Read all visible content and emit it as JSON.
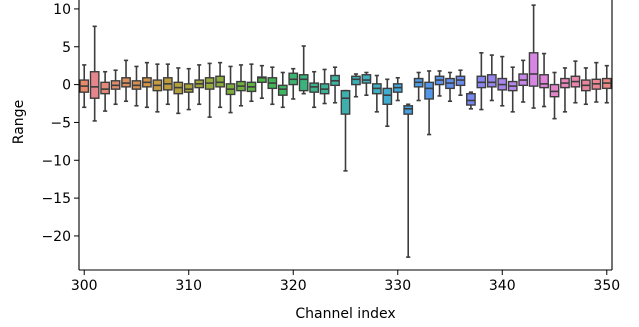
{
  "chart_data": {
    "type": "box",
    "title": "",
    "xlabel": "Channel index",
    "ylabel": "Range",
    "xlim": [
      299.5,
      350.5
    ],
    "ylim": [
      -24.5,
      12.5
    ],
    "xticks": [
      300,
      310,
      320,
      330,
      340,
      350
    ],
    "yticks": [
      10,
      5,
      0,
      -5,
      -10,
      -15,
      -20
    ],
    "ytick_labels": [
      "10",
      "5",
      "0",
      "−5",
      "−10",
      "−15",
      "−20"
    ],
    "grid": false,
    "legend": "none",
    "boxes": [
      {
        "x": 300,
        "color": "#e8896a",
        "whislo": -3.0,
        "q1": -1.0,
        "med": -0.2,
        "q3": 0.6,
        "whishi": 2.6
      },
      {
        "x": 301,
        "color": "#e4868c",
        "whislo": -4.8,
        "q1": -1.8,
        "med": -0.3,
        "q3": 1.7,
        "whishi": 7.7
      },
      {
        "x": 302,
        "color": "#e38a7a",
        "whislo": -3.5,
        "q1": -1.2,
        "med": -0.6,
        "q3": 0.3,
        "whishi": 1.7
      },
      {
        "x": 303,
        "color": "#de8c6d",
        "whislo": -2.6,
        "q1": -0.6,
        "med": -0.1,
        "q3": 0.5,
        "whishi": 1.9
      },
      {
        "x": 304,
        "color": "#db8d5f",
        "whislo": -2.2,
        "q1": -0.3,
        "med": 0.2,
        "q3": 0.9,
        "whishi": 3.2
      },
      {
        "x": 305,
        "color": "#d78f4f",
        "whislo": -2.8,
        "q1": -0.6,
        "med": -0.1,
        "q3": 0.5,
        "whishi": 2.4
      },
      {
        "x": 306,
        "color": "#d29447",
        "whislo": -3.0,
        "q1": -0.3,
        "med": 0.3,
        "q3": 0.9,
        "whishi": 2.9
      },
      {
        "x": 307,
        "color": "#c59a41",
        "whislo": -3.6,
        "q1": -0.8,
        "med": -0.1,
        "q3": 0.6,
        "whishi": 2.7
      },
      {
        "x": 308,
        "color": "#bc9c3f",
        "whislo": -2.6,
        "q1": -0.7,
        "med": 0.1,
        "q3": 0.9,
        "whishi": 2.7
      },
      {
        "x": 309,
        "color": "#b3a03d",
        "whislo": -3.8,
        "q1": -1.2,
        "med": -0.4,
        "q3": 0.3,
        "whishi": 2.2
      },
      {
        "x": 310,
        "color": "#a9a33b",
        "whislo": -3.3,
        "q1": -1.0,
        "med": -0.6,
        "q3": 0.1,
        "whishi": 2.1
      },
      {
        "x": 311,
        "color": "#a0a63b",
        "whislo": -2.6,
        "q1": -0.4,
        "med": 0.1,
        "q3": 0.6,
        "whishi": 2.6
      },
      {
        "x": 312,
        "color": "#97aa3c",
        "whislo": -4.3,
        "q1": -0.6,
        "med": 0.2,
        "q3": 0.9,
        "whishi": 2.8
      },
      {
        "x": 313,
        "color": "#8bac3c",
        "whislo": -3.0,
        "q1": -0.3,
        "med": 0.3,
        "q3": 1.1,
        "whishi": 2.9
      },
      {
        "x": 314,
        "color": "#7eae3d",
        "whislo": -3.7,
        "q1": -1.3,
        "med": -0.6,
        "q3": 0.1,
        "whishi": 2.4
      },
      {
        "x": 315,
        "color": "#6eb13f",
        "whislo": -2.8,
        "q1": -0.8,
        "med": -0.2,
        "q3": 0.4,
        "whishi": 2.6
      },
      {
        "x": 316,
        "color": "#5cb342",
        "whislo": -2.2,
        "q1": -0.9,
        "med": -0.3,
        "q3": 0.3,
        "whishi": 2.7
      },
      {
        "x": 317,
        "color": "#4db548",
        "whislo": -1.8,
        "q1": 0.3,
        "med": 0.9,
        "q3": 1.0,
        "whishi": 2.5
      },
      {
        "x": 318,
        "color": "#43b456",
        "whislo": -2.6,
        "q1": -0.5,
        "med": 0.2,
        "q3": 0.9,
        "whishi": 2.3
      },
      {
        "x": 319,
        "color": "#3fb463",
        "whislo": -3.0,
        "q1": -1.4,
        "med": -0.6,
        "q3": -0.1,
        "whishi": 1.6
      },
      {
        "x": 320,
        "color": "#3db470",
        "whislo": -1.9,
        "q1": 0.0,
        "med": 0.7,
        "q3": 1.5,
        "whishi": 2.1
      },
      {
        "x": 321,
        "color": "#3cb37d",
        "whislo": -1.2,
        "q1": -0.8,
        "med": 0.7,
        "q3": 1.3,
        "whishi": 5.1
      },
      {
        "x": 322,
        "color": "#3cb28a",
        "whislo": -3.0,
        "q1": -1.0,
        "med": -0.3,
        "q3": 0.2,
        "whishi": 1.7
      },
      {
        "x": 323,
        "color": "#3db296",
        "whislo": -2.5,
        "q1": -1.2,
        "med": -0.6,
        "q3": 0.1,
        "whishi": 2.0
      },
      {
        "x": 324,
        "color": "#3fb3a2",
        "whislo": -2.4,
        "q1": -0.1,
        "med": 0.5,
        "q3": 1.2,
        "whishi": 2.3
      },
      {
        "x": 325,
        "color": "#3eafac",
        "whislo": -11.4,
        "q1": -3.9,
        "med": -1.8,
        "q3": -0.8,
        "whishi": -0.8
      },
      {
        "x": 326,
        "color": "#3eaeb5",
        "whislo": -1.6,
        "q1": 0.0,
        "med": 0.7,
        "q3": 1.1,
        "whishi": 1.4
      },
      {
        "x": 327,
        "color": "#3fb0bd",
        "whislo": -1.4,
        "q1": 0.2,
        "med": 0.6,
        "q3": 1.3,
        "whishi": 1.6
      },
      {
        "x": 328,
        "color": "#40b0c6",
        "whislo": -3.6,
        "q1": -1.2,
        "med": -0.5,
        "q3": 0.1,
        "whishi": 1.2
      },
      {
        "x": 329,
        "color": "#40acd0",
        "whislo": -5.5,
        "q1": -2.6,
        "med": -1.4,
        "q3": -0.5,
        "whishi": 0.7
      },
      {
        "x": 330,
        "color": "#3ea9db",
        "whislo": -2.1,
        "q1": -1.0,
        "med": -0.4,
        "q3": 0.1,
        "whishi": 0.9
      },
      {
        "x": 331,
        "color": "#45a2e2",
        "whislo": -22.8,
        "q1": -3.9,
        "med": -3.2,
        "q3": -2.8,
        "whishi": -2.6
      },
      {
        "x": 332,
        "color": "#4d9ce6",
        "whislo": -2.1,
        "q1": -0.3,
        "med": 0.3,
        "q3": 0.8,
        "whishi": 1.6
      },
      {
        "x": 333,
        "color": "#5398e8",
        "whislo": -6.6,
        "q1": -1.9,
        "med": -0.5,
        "q3": 0.3,
        "whishi": 1.8
      },
      {
        "x": 334,
        "color": "#5994ea",
        "whislo": -1.5,
        "q1": 0.0,
        "med": 0.6,
        "q3": 1.1,
        "whishi": 1.8
      },
      {
        "x": 335,
        "color": "#6090ec",
        "whislo": -2.2,
        "q1": -0.5,
        "med": 0.2,
        "q3": 0.8,
        "whishi": 1.6
      },
      {
        "x": 336,
        "color": "#6a8cee",
        "whislo": -1.4,
        "q1": -0.1,
        "med": 0.6,
        "q3": 1.1,
        "whishi": 1.9
      },
      {
        "x": 337,
        "color": "#7888ef",
        "whislo": -3.2,
        "q1": -2.7,
        "med": -2.1,
        "q3": -1.2,
        "whishi": -1.0
      },
      {
        "x": 338,
        "color": "#8886ef",
        "whislo": -3.3,
        "q1": -0.4,
        "med": 0.3,
        "q3": 1.1,
        "whishi": 4.2
      },
      {
        "x": 339,
        "color": "#9886ee",
        "whislo": -2.1,
        "q1": -0.3,
        "med": 0.3,
        "q3": 1.3,
        "whishi": 3.9
      },
      {
        "x": 340,
        "color": "#a886ed",
        "whislo": -2.8,
        "q1": -0.7,
        "med": 0.0,
        "q3": 0.8,
        "whishi": 3.7
      },
      {
        "x": 341,
        "color": "#b986ec",
        "whislo": -3.6,
        "q1": -0.8,
        "med": -0.2,
        "q3": 0.4,
        "whishi": 2.3
      },
      {
        "x": 342,
        "color": "#c887e8",
        "whislo": -2.3,
        "q1": -0.1,
        "med": 0.6,
        "q3": 1.4,
        "whishi": 3.2
      },
      {
        "x": 343,
        "color": "#d886e4",
        "whislo": -3.1,
        "q1": -0.2,
        "med": 1.4,
        "q3": 4.2,
        "whishi": 10.5
      },
      {
        "x": 344,
        "color": "#e085d9",
        "whislo": -2.9,
        "q1": -0.4,
        "med": 0.1,
        "q3": 1.3,
        "whishi": 4.1
      },
      {
        "x": 345,
        "color": "#e385ca",
        "whislo": -4.5,
        "q1": -1.6,
        "med": -0.9,
        "q3": 0.0,
        "whishi": 1.6
      },
      {
        "x": 346,
        "color": "#e686bb",
        "whislo": -3.6,
        "q1": -0.4,
        "med": 0.2,
        "q3": 0.8,
        "whishi": 2.2
      },
      {
        "x": 347,
        "color": "#e886ac",
        "whislo": -2.4,
        "q1": -0.3,
        "med": 0.4,
        "q3": 1.1,
        "whishi": 3.1
      },
      {
        "x": 348,
        "color": "#e9869e",
        "whislo": -2.6,
        "q1": -0.8,
        "med": -0.1,
        "q3": 0.6,
        "whishi": 2.2
      },
      {
        "x": 349,
        "color": "#ea8792",
        "whislo": -2.3,
        "q1": -0.6,
        "med": 0.1,
        "q3": 0.7,
        "whishi": 2.9
      },
      {
        "x": 350,
        "color": "#ea8884",
        "whislo": -2.4,
        "q1": -0.5,
        "med": 0.2,
        "q3": 0.8,
        "whishi": 2.5
      }
    ]
  }
}
